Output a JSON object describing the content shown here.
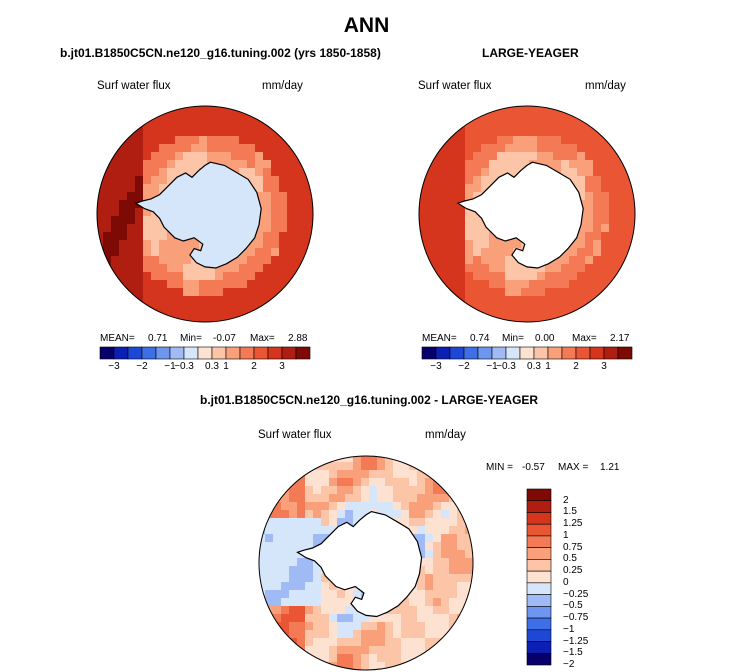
{
  "figure": {
    "title": "ANN",
    "panel1_title": "b.jt01.B1850C5CN.ne120_g16.tuning.002 (yrs 1850-1858)",
    "panel2_title": "LARGE-YEAGER",
    "panel3_title": "b.jt01.B1850C5CN.ne120_g16.tuning.002 - LARGE-YEAGER"
  },
  "colors": {
    "land": "#ffffff",
    "coast": "#000000",
    "abs_scale": [
      "#08006a",
      "#0b1fb5",
      "#1f47d6",
      "#3f6fe6",
      "#6f96ef",
      "#9fbaf5",
      "#d6e6fa",
      "#fde2d2",
      "#fcc5a8",
      "#f9a07a",
      "#f47a55",
      "#ea5534",
      "#d5351d",
      "#b01e12",
      "#7e0a05"
    ],
    "diff_scale": [
      "#08006a",
      "#0b1fb5",
      "#1f47d6",
      "#3f6fe6",
      "#6f96ef",
      "#9fbaf5",
      "#d6e6fa",
      "#fde2d2",
      "#fcc5a8",
      "#f9a07a",
      "#f47a55",
      "#ea5534",
      "#d5351d",
      "#b01e12",
      "#7e0a05"
    ]
  },
  "chart_data": [
    {
      "type": "heatmap",
      "title": "b.jt01.B1850C5CN.ne120_g16.tuning.002 (yrs 1850-1858)",
      "field_label": "Surf water flux",
      "units": "mm/day",
      "projection": "south polar stereographic",
      "stats": {
        "mean_label": "MEAN=",
        "mean": "0.71",
        "min_label": "Min=",
        "min": "-0.07",
        "max_label": "Max=",
        "max": "2.88"
      },
      "colorbar_ticks": [
        "-3",
        "-2",
        "-1",
        "-0.3",
        "0.3",
        "1",
        "2",
        "3"
      ],
      "levels": [
        -3,
        -2.5,
        -2,
        -1.5,
        -1,
        -0.6,
        -0.3,
        0,
        0.3,
        0.6,
        1,
        1.5,
        2,
        2.5,
        3
      ],
      "field": {
        "outer_ring": 2.0,
        "mid_ring": 1.0,
        "inner_ring": 0.5,
        "ice_shelf": -0.05,
        "west_enhancement": 2.6
      }
    },
    {
      "type": "heatmap",
      "title": "LARGE-YEAGER",
      "field_label": "Surf water flux",
      "units": "mm/day",
      "projection": "south polar stereographic",
      "stats": {
        "mean_label": "MEAN=",
        "mean": "0.74",
        "min_label": "Min=",
        "min": "0.00",
        "max_label": "Max=",
        "max": "2.17"
      },
      "colorbar_ticks": [
        "-3",
        "-2",
        "-1",
        "-0.3",
        "0.3",
        "1",
        "2",
        "3"
      ],
      "levels": [
        -3,
        -2.5,
        -2,
        -1.5,
        -1,
        -0.6,
        -0.3,
        0,
        0.3,
        0.6,
        1,
        1.5,
        2,
        2.5,
        3
      ],
      "field": {
        "outer_ring": 1.5,
        "mid_ring": 0.9,
        "inner_ring": 0.4,
        "ice_shelf": 0.0,
        "west_enhancement": 2.0
      }
    },
    {
      "type": "heatmap",
      "title": "b.jt01.B1850C5CN.ne120_g16.tuning.002 - LARGE-YEAGER",
      "field_label": "Surf water flux",
      "units": "mm/day",
      "projection": "south polar stereographic",
      "stats": {
        "min_label": "MIN =",
        "min": "-0.57",
        "max_label": "MAX =",
        "max": "1.21"
      },
      "colorbar_ticks": [
        "2",
        "1.5",
        "1.25",
        "1",
        "0.75",
        "0.5",
        "0.25",
        "0",
        "-0.25",
        "-0.5",
        "-0.75",
        "-1",
        "-1.25",
        "-1.5",
        "-2"
      ],
      "levels": [
        -2,
        -1.5,
        -1.25,
        -1,
        -0.75,
        -0.5,
        -0.25,
        0,
        0.25,
        0.5,
        0.75,
        1,
        1.25,
        1.5,
        2
      ],
      "field": {
        "outer_ring": 0.3,
        "mid_ring": 0.15,
        "inner_ring": -0.1,
        "ice_shelf": 0.0,
        "west_enhancement": 0.8
      }
    }
  ]
}
